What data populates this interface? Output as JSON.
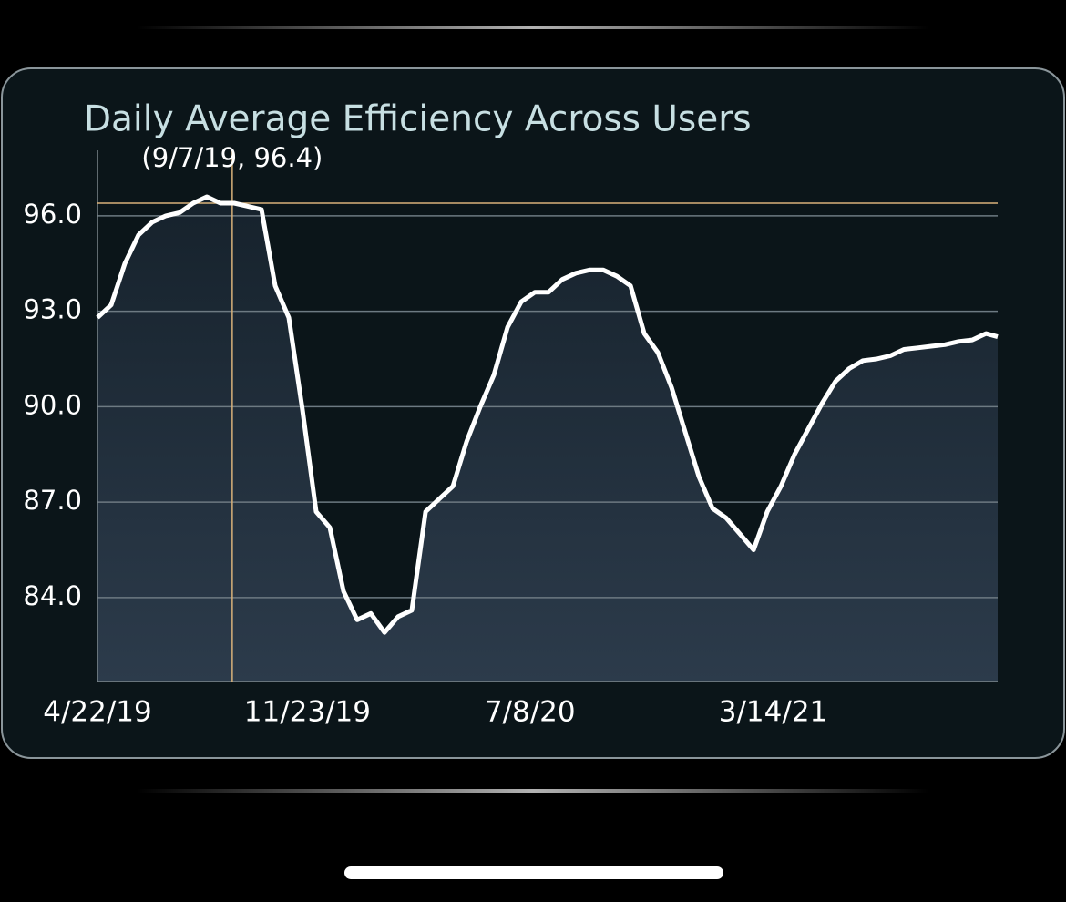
{
  "chart_data": {
    "type": "area",
    "title": "Daily Average Efficiency Across Users",
    "annotation": {
      "text": "(9/7/19, 96.4)",
      "x": "9/7/19",
      "y": 96.4
    },
    "x": [
      "4/22/19",
      "5/6/19",
      "5/20/19",
      "6/3/19",
      "6/17/19",
      "7/1/19",
      "7/15/19",
      "7/29/19",
      "8/12/19",
      "8/26/19",
      "9/9/19",
      "9/23/19",
      "10/7/19",
      "10/21/19",
      "11/4/19",
      "11/18/19",
      "12/2/19",
      "12/16/19",
      "12/30/19",
      "1/13/20",
      "1/27/20",
      "2/10/20",
      "2/24/20",
      "3/9/20",
      "3/23/20",
      "4/6/20",
      "4/20/20",
      "5/4/20",
      "5/18/20",
      "6/1/20",
      "6/15/20",
      "6/29/20",
      "7/13/20",
      "7/27/20",
      "8/10/20",
      "8/24/20",
      "9/7/20",
      "9/21/20",
      "10/5/20",
      "10/19/20",
      "11/2/20",
      "11/16/20",
      "11/30/20",
      "12/14/20",
      "12/28/20",
      "1/11/21",
      "1/25/21",
      "2/8/21",
      "2/22/21",
      "3/8/21",
      "3/22/21",
      "4/5/21",
      "4/19/21",
      "5/3/21",
      "5/17/21",
      "5/31/21",
      "6/14/21",
      "6/28/21",
      "7/12/21",
      "7/26/21",
      "8/9/21",
      "8/23/21",
      "9/6/21",
      "9/20/21",
      "10/4/21",
      "10/18/21",
      "10/30/21"
    ],
    "series": [
      {
        "name": "Efficiency",
        "color": "#ffffff",
        "values": [
          92.8,
          93.2,
          94.5,
          95.4,
          95.8,
          96.0,
          96.1,
          96.4,
          96.6,
          96.4,
          96.4,
          96.3,
          96.2,
          93.8,
          92.8,
          89.9,
          86.7,
          86.2,
          84.2,
          83.3,
          83.5,
          82.9,
          83.4,
          83.6,
          86.7,
          87.1,
          87.5,
          88.9,
          90.0,
          91.0,
          92.5,
          93.3,
          93.6,
          93.6,
          94.0,
          94.2,
          94.3,
          94.3,
          94.1,
          93.8,
          92.3,
          91.7,
          90.6,
          89.2,
          87.8,
          86.8,
          86.5,
          86.0,
          85.5,
          86.7,
          87.5,
          88.5,
          89.3,
          90.1,
          90.8,
          91.2,
          91.45,
          91.5,
          91.6,
          91.8,
          91.85,
          91.9,
          91.95,
          92.05,
          92.1,
          92.3,
          92.2
        ]
      }
    ],
    "xlim": [
      "4/22/19",
      "10/30/21"
    ],
    "xticks": [
      "4/22/19",
      "11/23/19",
      "7/8/20",
      "3/14/21"
    ],
    "ylim": [
      81.36,
      98.06
    ],
    "yticks": [
      {
        "value": 84,
        "label": "84.0"
      },
      {
        "value": 87,
        "label": "87.0"
      },
      {
        "value": 90,
        "label": "90.0"
      },
      {
        "value": 93,
        "label": "93.0"
      },
      {
        "value": 96,
        "label": "96.0"
      }
    ],
    "grid": true
  }
}
